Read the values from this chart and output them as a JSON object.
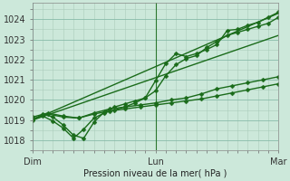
{
  "bg_color": "#cce8da",
  "line_color": "#1a6b1a",
  "grid_minor_color": "#aaccbb",
  "grid_major_color": "#88bbaa",
  "xlabel": "Pression niveau de la mer( hPa )",
  "ylim": [
    1017.5,
    1024.8
  ],
  "xlim": [
    0,
    48
  ],
  "xtick_positions": [
    0,
    24,
    48
  ],
  "xtick_labels": [
    "Dim",
    "Lun",
    "Mar"
  ],
  "ytick_positions": [
    1018,
    1019,
    1020,
    1021,
    1022,
    1023,
    1024
  ],
  "ytick_labels": [
    "1018",
    "1019",
    "1020",
    "1021",
    "1022",
    "1023",
    "1024"
  ],
  "series": [
    {
      "x": [
        0,
        48
      ],
      "y": [
        1019.0,
        1024.3
      ],
      "marker": "",
      "linewidth": 1.0
    },
    {
      "x": [
        0,
        48
      ],
      "y": [
        1019.0,
        1023.2
      ],
      "marker": "",
      "linewidth": 1.0
    },
    {
      "x": [
        0,
        2,
        4,
        6,
        8,
        10,
        12,
        14,
        16,
        18,
        20,
        22,
        24,
        26,
        28,
        30,
        32,
        34,
        36,
        38,
        40,
        42,
        44,
        46,
        48
      ],
      "y": [
        1019.0,
        1019.3,
        1019.15,
        1018.75,
        1018.25,
        1018.1,
        1018.9,
        1019.4,
        1019.65,
        1019.8,
        1019.95,
        1020.1,
        1020.95,
        1021.8,
        1022.3,
        1022.15,
        1022.3,
        1022.5,
        1022.75,
        1023.45,
        1023.5,
        1023.7,
        1023.85,
        1024.1,
        1024.35
      ],
      "marker": "D",
      "linewidth": 1.0
    },
    {
      "x": [
        0,
        2,
        4,
        6,
        8,
        10,
        12,
        14,
        16,
        18,
        20,
        22,
        24,
        26,
        28,
        30,
        32,
        34,
        36,
        38,
        40,
        42,
        44,
        46,
        48
      ],
      "y": [
        1019.05,
        1019.2,
        1018.95,
        1018.6,
        1018.1,
        1018.55,
        1019.1,
        1019.35,
        1019.5,
        1019.65,
        1019.85,
        1020.1,
        1020.45,
        1021.2,
        1021.75,
        1022.05,
        1022.2,
        1022.6,
        1022.9,
        1023.2,
        1023.35,
        1023.5,
        1023.65,
        1023.8,
        1024.1
      ],
      "marker": "D",
      "linewidth": 1.0
    },
    {
      "x": [
        0,
        3,
        6,
        9,
        12,
        15,
        18,
        21,
        24,
        27,
        30,
        33,
        36,
        39,
        42,
        45,
        48
      ],
      "y": [
        1019.15,
        1019.35,
        1019.2,
        1019.1,
        1019.35,
        1019.55,
        1019.65,
        1019.75,
        1019.85,
        1020.0,
        1020.1,
        1020.3,
        1020.55,
        1020.7,
        1020.85,
        1021.0,
        1021.15
      ],
      "marker": "D",
      "linewidth": 1.0
    },
    {
      "x": [
        0,
        3,
        6,
        9,
        12,
        15,
        18,
        21,
        24,
        27,
        30,
        33,
        36,
        39,
        42,
        45,
        48
      ],
      "y": [
        1019.05,
        1019.3,
        1019.15,
        1019.1,
        1019.3,
        1019.45,
        1019.55,
        1019.65,
        1019.75,
        1019.85,
        1019.95,
        1020.05,
        1020.2,
        1020.35,
        1020.5,
        1020.65,
        1020.8
      ],
      "marker": "D",
      "linewidth": 1.0
    }
  ],
  "vline_x": 24,
  "markersize": 2.5
}
